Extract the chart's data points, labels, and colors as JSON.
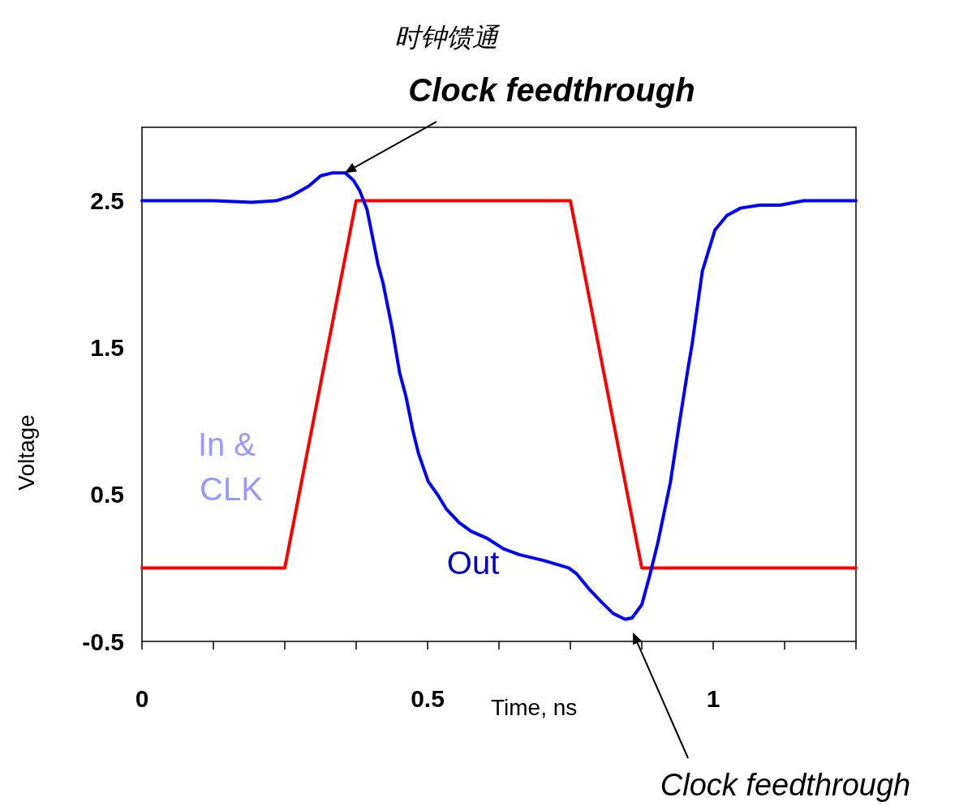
{
  "chart_data": {
    "type": "line",
    "xlabel": "Time, ns",
    "ylabel": "Voltage",
    "xlim": [
      0,
      1.25
    ],
    "ylim": [
      -0.5,
      3
    ],
    "xticks": [
      0,
      {
        "value": 0.125,
        "label": null
      },
      {
        "value": 0.25,
        "label": null
      },
      {
        "value": 0.375,
        "label": null
      },
      0.5,
      {
        "value": 0.625,
        "label": null
      },
      {
        "value": 0.75,
        "label": null
      },
      {
        "value": 0.875,
        "label": null
      },
      1,
      {
        "value": 1.125,
        "label": null
      },
      {
        "value": 1.25,
        "label": null
      }
    ],
    "yticks": [
      -0.5,
      0.5,
      1.5,
      2.5
    ],
    "grid": false,
    "marker": "none",
    "line_style": "solid",
    "series": [
      {
        "color": "#ff0000",
        "x": [
          0,
          0.25,
          0.375,
          0.75,
          0.875,
          1.25
        ],
        "values": [
          0,
          0,
          2.5,
          2.5,
          0,
          0
        ]
      },
      {
        "color": "#0000ff",
        "x": [
          0,
          0.125,
          0.192,
          0.235,
          0.26,
          0.292,
          0.313,
          0.334,
          0.356,
          0.37,
          0.381,
          0.394,
          0.413,
          0.422,
          0.438,
          0.451,
          0.462,
          0.474,
          0.484,
          0.501,
          0.519,
          0.533,
          0.555,
          0.576,
          0.605,
          0.633,
          0.661,
          0.704,
          0.747,
          0.761,
          0.782,
          0.804,
          0.825,
          0.846,
          0.858,
          0.875,
          0.889,
          0.903,
          0.925,
          0.939,
          0.956,
          0.963,
          0.981,
          1.003,
          1.024,
          1.048,
          1.081,
          1.117,
          1.159,
          1.25
        ],
        "values": [
          2.5,
          2.5,
          2.49,
          2.5,
          2.53,
          2.6,
          2.67,
          2.69,
          2.69,
          2.64,
          2.57,
          2.44,
          2.07,
          1.94,
          1.63,
          1.33,
          1.17,
          0.94,
          0.78,
          0.59,
          0.49,
          0.4,
          0.31,
          0.25,
          0.2,
          0.13,
          0.09,
          0.05,
          0,
          -0.04,
          -0.14,
          -0.23,
          -0.31,
          -0.35,
          -0.34,
          -0.25,
          -0.05,
          0.17,
          0.58,
          0.94,
          1.36,
          1.52,
          2.02,
          2.3,
          2.4,
          2.45,
          2.47,
          2.47,
          2.5,
          2.5
        ]
      }
    ],
    "annotations": [
      "In & CLK",
      "Out",
      "时钟馈通",
      {
        "text": "Clock feedthrough",
        "x": 0.355,
        "y": 2.69
      },
      "Clock feedthrough"
    ]
  }
}
